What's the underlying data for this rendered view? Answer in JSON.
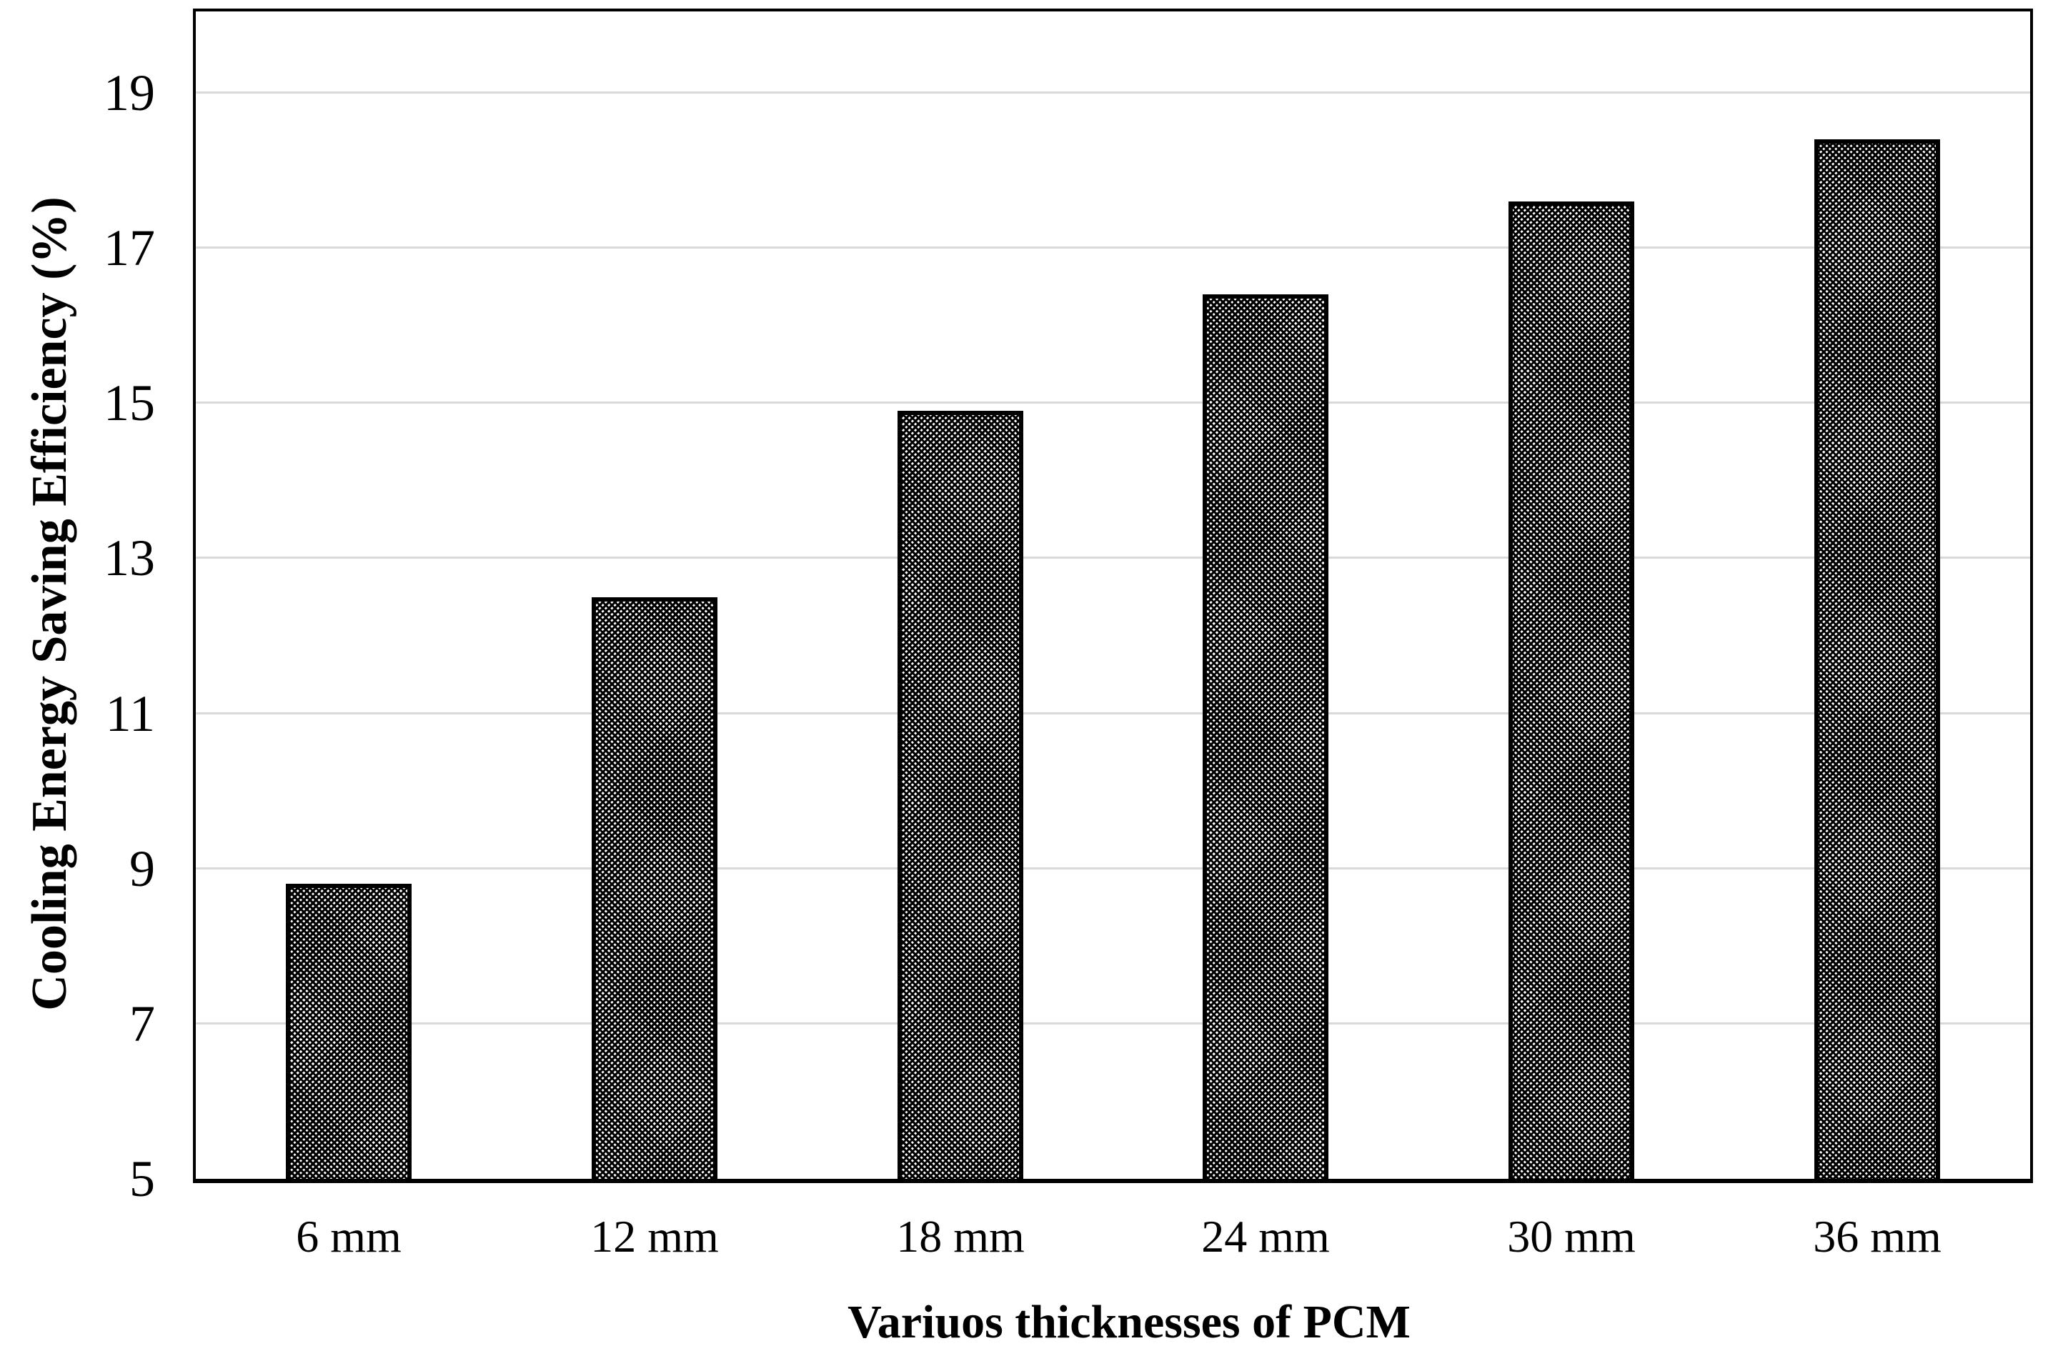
{
  "chart_data": {
    "type": "bar",
    "title": "",
    "categories": [
      "6 mm",
      "12 mm",
      "18 mm",
      "24 mm",
      "30 mm",
      "36 mm"
    ],
    "values": [
      8.8,
      12.5,
      14.9,
      16.4,
      17.6,
      18.4
    ],
    "xlabel": "Variuos thicknesses of PCM",
    "ylabel": "Cooling Energy Saving Efficiency (%)",
    "ylim": [
      5,
      20.05
    ],
    "yticks": [
      5,
      7,
      9,
      11,
      13,
      15,
      17,
      19
    ],
    "grid": "horizontal-major",
    "legend_position": "none",
    "bar_fill": "black-diagonal-crosshatch-dot-pattern",
    "colors": {
      "bar": "#000000",
      "gridline": "#d9d9d9",
      "axis": "#000000",
      "text": "#000000",
      "background": "#ffffff"
    }
  }
}
